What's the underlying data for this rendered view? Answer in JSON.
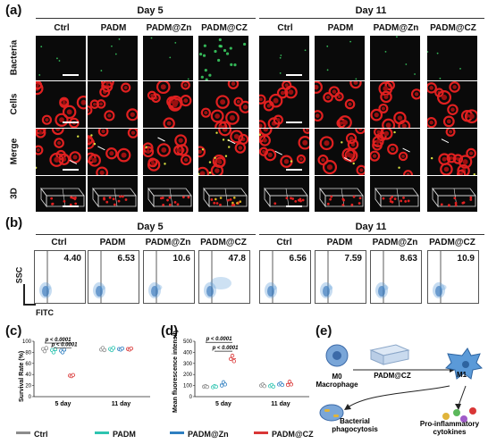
{
  "panel_a": {
    "label": "(a)",
    "days": [
      "Day 5",
      "Day 11"
    ],
    "columns": [
      "Ctrl",
      "PADM",
      "PADM@Zn",
      "PADM@CZ",
      "Ctrl",
      "PADM",
      "PADM@Zn",
      "PADM@CZ"
    ],
    "rows": [
      "Bacteria",
      "Cells",
      "Merge",
      "3D"
    ]
  },
  "panel_b": {
    "label": "(b)",
    "days": [
      "Day 5",
      "Day 11"
    ],
    "columns": [
      "Ctrl",
      "PADM",
      "PADM@Zn",
      "PADM@CZ",
      "Ctrl",
      "PADM",
      "PADM@Zn",
      "PADM@CZ"
    ],
    "values": [
      "4.40",
      "6.53",
      "10.6",
      "47.8",
      "6.56",
      "7.59",
      "8.63",
      "10.9"
    ],
    "yaxis": "SSC",
    "xaxis": "FITC"
  },
  "panel_c": {
    "label": "(c)",
    "chart_data": {
      "type": "scatter",
      "ylabel": "Survival Rate (%)",
      "categories": [
        "5 day",
        "11 day"
      ],
      "ylim": [
        0,
        100
      ],
      "yticks": [
        "0",
        "20",
        "40",
        "60",
        "80",
        "100"
      ],
      "series": [
        {
          "name": "Ctrl",
          "values": [
            [
              86,
              82,
              88
            ],
            [
              85,
              88,
              84
            ]
          ]
        },
        {
          "name": "PADM",
          "values": [
            [
              84,
              80,
              86
            ],
            [
              86,
              84,
              88
            ]
          ]
        },
        {
          "name": "PADM@Zn",
          "values": [
            [
              83,
              80,
              85
            ],
            [
              86,
              85,
              87
            ]
          ]
        },
        {
          "name": "PADM@CZ",
          "values": [
            [
              38,
              37,
              39
            ],
            [
              86,
              85,
              87
            ]
          ]
        }
      ],
      "annotations": [
        "p < 0.0001",
        "p < 0.0001"
      ]
    }
  },
  "panel_d": {
    "label": "(d)",
    "chart_data": {
      "type": "scatter",
      "ylabel": "Mean fluorescence intensity",
      "categories": [
        "5 day",
        "11 day"
      ],
      "ylim": [
        0,
        500
      ],
      "yticks": [
        "0",
        "100",
        "200",
        "300",
        "400",
        "500"
      ],
      "series": [
        {
          "name": "Ctrl",
          "values": [
            [
              90,
              95,
              88
            ],
            [
              100,
              110,
              95
            ]
          ]
        },
        {
          "name": "PADM",
          "values": [
            [
              85,
              95,
              90
            ],
            [
              95,
              105,
              90
            ]
          ]
        },
        {
          "name": "PADM@Zn",
          "values": [
            [
              100,
              130,
              110
            ],
            [
              110,
              120,
              105
            ]
          ]
        },
        {
          "name": "PADM@CZ",
          "values": [
            [
              340,
              370,
              320
            ],
            [
              105,
              135,
              110
            ]
          ]
        }
      ],
      "annotations": [
        "p < 0.0001",
        "p < 0.0001"
      ]
    }
  },
  "panel_e": {
    "label": "(e)",
    "m0": "M0",
    "m0_sub": "Macrophage",
    "material": "PADM@CZ",
    "m1": "M1",
    "bact": "Bacterial phagocytosis",
    "cyto": "Pro-inflammatory cytokines"
  },
  "legend": [
    {
      "name": "Ctrl",
      "color": "#8c8c8c"
    },
    {
      "name": "PADM",
      "color": "#2ec4b0"
    },
    {
      "name": "PADM@Zn",
      "color": "#2f7fc1"
    },
    {
      "name": "PADM@CZ",
      "color": "#d93636"
    }
  ]
}
